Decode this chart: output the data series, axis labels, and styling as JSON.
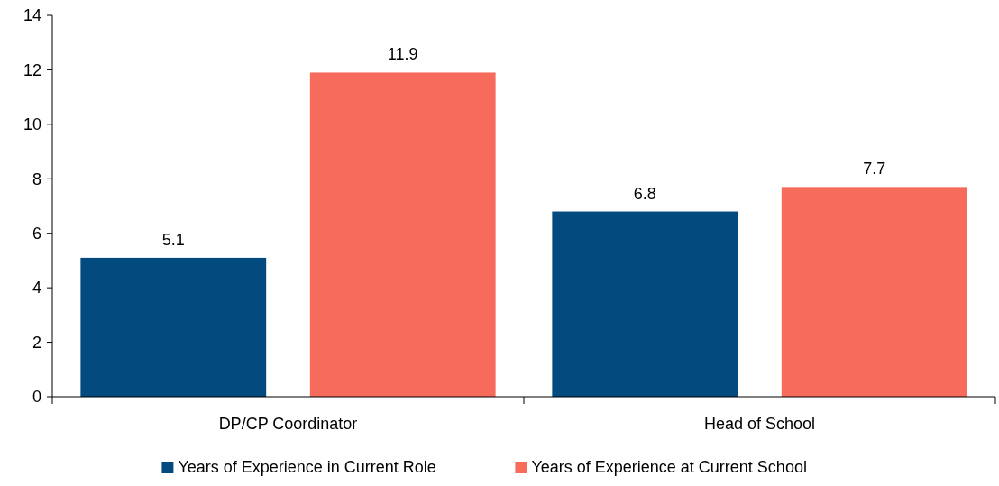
{
  "chart_data": {
    "type": "bar",
    "categories": [
      "DP/CP Coordinator",
      "Head of School"
    ],
    "series": [
      {
        "name": "Years of Experience in Current Role",
        "color": "#034a7f",
        "values": [
          5.1,
          6.8
        ]
      },
      {
        "name": "Years of Experience at Current School",
        "color": "#f76b5c",
        "values": [
          11.9,
          7.7
        ]
      }
    ],
    "ylim": [
      0,
      14
    ],
    "yticks": [
      0,
      2,
      4,
      6,
      8,
      10,
      12,
      14
    ],
    "data_labels": true,
    "legend": "bottom",
    "grid": false
  }
}
